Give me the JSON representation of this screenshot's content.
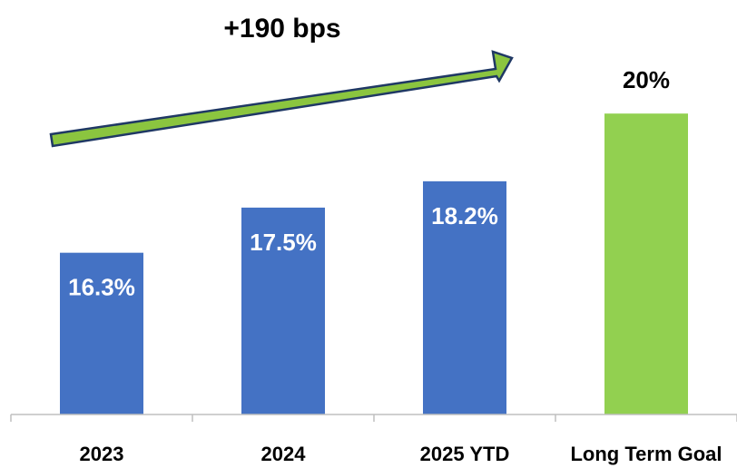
{
  "chart_data": {
    "type": "bar",
    "categories": [
      "2023",
      "2024",
      "2025 YTD",
      "Long Term Goal"
    ],
    "values": [
      16.3,
      17.5,
      18.2,
      20.0
    ],
    "data_labels": [
      "16.3%",
      "17.5%",
      "18.2%",
      "20%"
    ],
    "bar_colors": [
      "#4472C4",
      "#4472C4",
      "#4472C4",
      "#92D050"
    ],
    "label_colors": [
      "#ffffff",
      "#ffffff",
      "#ffffff",
      "#000000"
    ],
    "label_positions": [
      "inside",
      "inside",
      "inside",
      "outside"
    ],
    "title": "",
    "xlabel": "",
    "ylabel": "",
    "ylim": [
      12,
      21.5
    ],
    "grid": false,
    "legend": "none",
    "annotation": {
      "text": "+190 bps",
      "arrow_fill": "#8BC53F",
      "arrow_stroke": "#1F3864"
    }
  }
}
